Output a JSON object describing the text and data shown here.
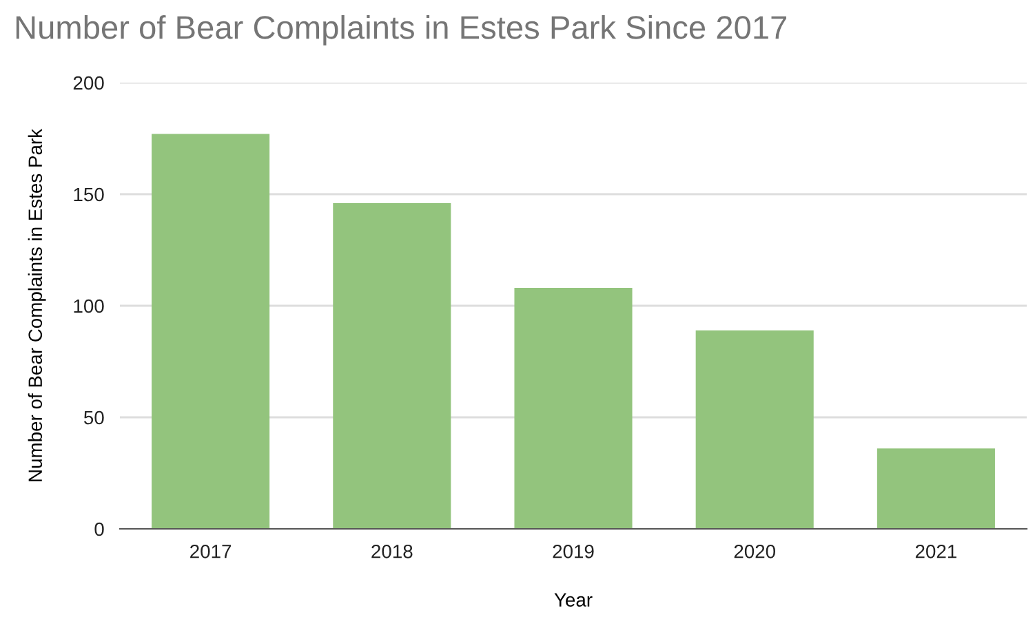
{
  "chart_data": {
    "type": "bar",
    "title": "Number of Bear Complaints in Estes Park Since 2017",
    "xlabel": "Year",
    "ylabel": "Number of Bear Complaints in Estes Park",
    "categories": [
      "2017",
      "2018",
      "2019",
      "2020",
      "2021"
    ],
    "values": [
      177,
      146,
      108,
      89,
      36
    ],
    "color": "#93c47d",
    "ylim": [
      0,
      200
    ],
    "yticks": [
      0,
      50,
      100,
      150,
      200
    ],
    "grid": "y"
  }
}
